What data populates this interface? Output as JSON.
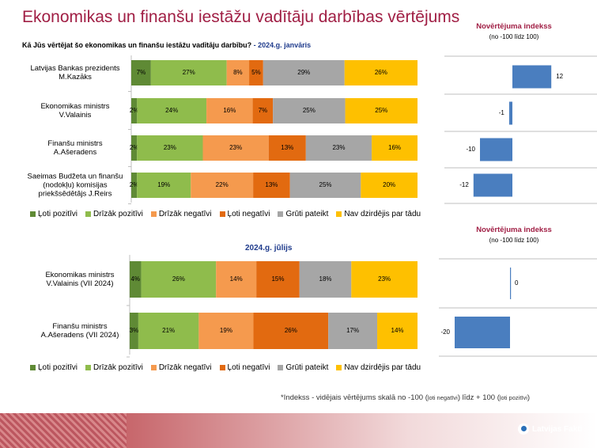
{
  "title": "Ekonomikas un finanšu iestāžu vadītāju darbības vērtējums",
  "question": "Kā Jūs vērtējat šo ekonomikas un finanšu iestāžu vadītāju darbību?",
  "period_label_jan": "- 2024.g. janvāris",
  "period_label_jul": "2024.g. jūlijs",
  "index_title": "Novērtējuma indekss",
  "index_subtitle": "(no -100 līdz 100)",
  "footnote_main": "*Indekss - vidējais vērtējums skalā no -100 (",
  "footnote_neg": "ļoti negatīvi",
  "footnote_mid": ") līdz + 100 (",
  "footnote_pos": "ļoti pozitīvi",
  "footnote_end": ")",
  "logo_text": "Latvijas Fakti",
  "colors": {
    "title": "#a01e44",
    "very_positive": "#5f8a35",
    "rather_positive": "#8fbc4c",
    "rather_negative": "#f59a4e",
    "very_negative": "#e26a10",
    "hard_to_say": "#a6a6a6",
    "not_heard": "#fec000",
    "index_bar": "#4a7ebf"
  },
  "chart_data": [
    {
      "type": "bar",
      "orientation": "horizontal",
      "stacked": true,
      "categories": [
        [
          "Latvijas Bankas prezidents",
          "M.Kazāks"
        ],
        [
          "Ekonomikas ministrs",
          "V.Valainis"
        ],
        [
          "Finanšu ministrs",
          "A.Ašeradens"
        ],
        [
          "Saeimas Budžeta un finanšu",
          "(nodokļu) komisijas",
          "priekšsēdētājs J.Reirs"
        ]
      ],
      "series": [
        {
          "name": "Ļoti pozitīvi",
          "values": [
            7,
            2,
            2,
            2
          ]
        },
        {
          "name": "Drīzāk pozitīvi",
          "values": [
            27,
            24,
            23,
            19
          ]
        },
        {
          "name": "Drīzāk negatīvi",
          "values": [
            8,
            16,
            23,
            22
          ]
        },
        {
          "name": "Ļoti negatīvi",
          "values": [
            5,
            7,
            13,
            13
          ]
        },
        {
          "name": "Grūti pateikt",
          "values": [
            29,
            25,
            23,
            25
          ]
        },
        {
          "name": "Nav dzirdējis par tādu",
          "values": [
            26,
            25,
            16,
            20
          ]
        }
      ],
      "legend_position": "bottom"
    },
    {
      "type": "bar",
      "orientation": "horizontal",
      "title": "Novērtējuma indekss",
      "categories": [
        "M.Kazāks",
        "V.Valainis",
        "A.Ašeradens",
        "J.Reirs"
      ],
      "values": [
        12,
        -1,
        -10,
        -12
      ],
      "xlim": [
        -30,
        20
      ]
    },
    {
      "type": "bar",
      "orientation": "horizontal",
      "stacked": true,
      "categories": [
        [
          "Ekonomikas ministrs",
          "V.Valainis (VII 2024)"
        ],
        [
          "Finanšu ministrs",
          "A.Ašeradens (VII 2024)"
        ]
      ],
      "series": [
        {
          "name": "Ļoti pozitīvi",
          "values": [
            4,
            3
          ]
        },
        {
          "name": "Drīzāk pozitīvi",
          "values": [
            26,
            21
          ]
        },
        {
          "name": "Drīzāk negatīvi",
          "values": [
            14,
            19
          ]
        },
        {
          "name": "Ļoti negatīvi",
          "values": [
            15,
            26
          ]
        },
        {
          "name": "Grūti pateikt",
          "values": [
            18,
            17
          ]
        },
        {
          "name": "Nav dzirdējis par tādu",
          "values": [
            23,
            14
          ]
        }
      ],
      "legend_position": "bottom"
    },
    {
      "type": "bar",
      "orientation": "horizontal",
      "title": "Novērtējuma indekss",
      "categories": [
        "V.Valainis (VII 2024)",
        "A.Ašeradens (VII 2024)"
      ],
      "values": [
        0,
        -20
      ],
      "xlim": [
        -30,
        20
      ]
    }
  ]
}
